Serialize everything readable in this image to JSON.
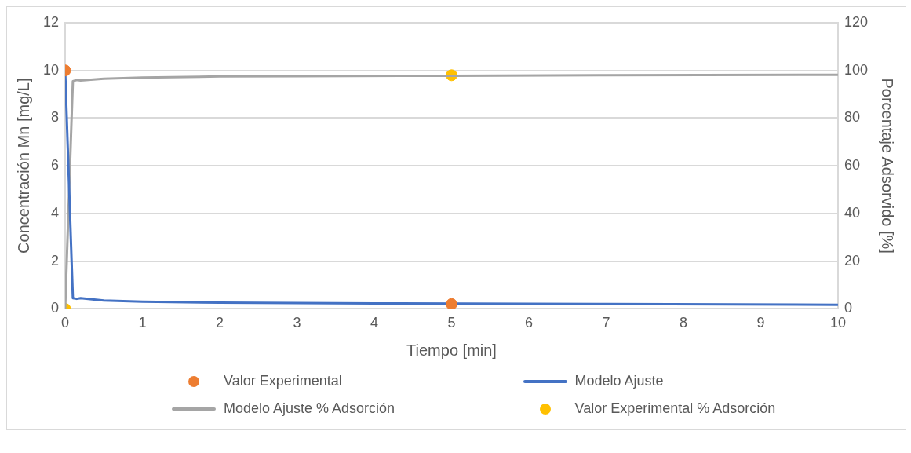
{
  "chart_data": {
    "type": "line",
    "xlabel": "Tiempo [min]",
    "ylabel": "Concentración Mn [mg/L]",
    "y2label": "Porcentaje Adsorvido [%]",
    "xlim": [
      0,
      10
    ],
    "xticks": [
      0,
      1,
      2,
      3,
      4,
      5,
      6,
      7,
      8,
      9,
      10
    ],
    "ylim": [
      0,
      12
    ],
    "yticks": [
      0,
      2,
      4,
      6,
      8,
      10,
      12
    ],
    "y2lim": [
      0,
      120
    ],
    "y2ticks": [
      0,
      20,
      40,
      60,
      80,
      100,
      120
    ],
    "grid": "y",
    "legend": "bottom",
    "series": [
      {
        "name": "Valor Experimental",
        "type": "scatter",
        "color": "#ed7d31",
        "marker": "circle",
        "x": [
          0,
          5
        ],
        "values": [
          10,
          0.2
        ]
      },
      {
        "name": "Modelo Ajuste",
        "type": "line",
        "color": "#4472c4",
        "marker": "none",
        "x": [
          0,
          0.1,
          0.15,
          0.2,
          0.5,
          1,
          2,
          3,
          4,
          6,
          7,
          10
        ],
        "values": [
          10,
          0.45,
          0.42,
          0.45,
          0.35,
          0.3,
          0.26,
          0.24,
          0.23,
          0.21,
          0.2,
          0.17
        ]
      },
      {
        "name": "Modelo Ajuste % Adsorción",
        "type": "line",
        "axis": "y2",
        "color": "#a5a5a5",
        "marker": "none",
        "x": [
          0,
          0.1,
          0.15,
          0.2,
          0.5,
          1,
          2,
          3,
          5,
          7,
          10
        ],
        "values": [
          0,
          95.5,
          96,
          95.8,
          96.5,
          97,
          97.5,
          97.6,
          97.8,
          98,
          98.2
        ]
      },
      {
        "name": "Valor Experimental % Adsorción",
        "type": "scatter",
        "axis": "y2",
        "color": "#ffc000",
        "marker": "circle",
        "x": [
          0,
          5
        ],
        "values": [
          0,
          98
        ]
      }
    ]
  }
}
